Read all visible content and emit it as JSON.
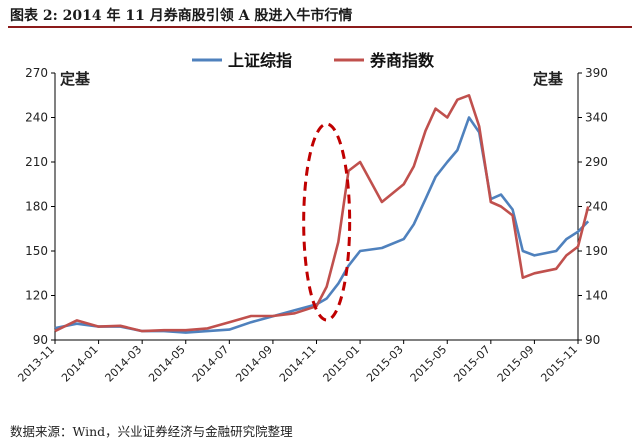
{
  "header": {
    "title": "图表 2: 2014 年 11 月券商股引领 A 股进入牛市行情"
  },
  "footer": {
    "source": "数据来源：Wind，兴业证券经济与金融研究院整理"
  },
  "chart_data": {
    "type": "line",
    "left_axis_label": "定基",
    "right_axis_label": "定基",
    "x_ticks": [
      "2013-11",
      "2014-01",
      "2014-03",
      "2014-05",
      "2014-07",
      "2014-09",
      "2014-11",
      "2015-01",
      "2015-03",
      "2015-05",
      "2015-07",
      "2015-09",
      "2015-11"
    ],
    "y_left": {
      "ticks": [
        90,
        120,
        150,
        180,
        210,
        240,
        270
      ],
      "ylim": [
        90,
        270
      ]
    },
    "y_right": {
      "ticks": [
        90,
        140,
        190,
        240,
        290,
        340,
        390
      ],
      "ylim": [
        90,
        390
      ]
    },
    "grid": false,
    "legend": "top-center",
    "annotation": "dashed red ellipse highlighting 2014-11 breakout",
    "series": [
      {
        "name": "上证综指",
        "axis": "left",
        "color": "#4f81bd",
        "points": [
          [
            "2013-11",
            98
          ],
          [
            "2013-12",
            101
          ],
          [
            "2014-01",
            99
          ],
          [
            "2014-02",
            99
          ],
          [
            "2014-03",
            96
          ],
          [
            "2014-04",
            96
          ],
          [
            "2014-05",
            95
          ],
          [
            "2014-06",
            96
          ],
          [
            "2014-07",
            97
          ],
          [
            "2014-08",
            102
          ],
          [
            "2014-09",
            106
          ],
          [
            "2014-10",
            110
          ],
          [
            "2014-11",
            114
          ],
          [
            "2014-11-15",
            118
          ],
          [
            "2014-12",
            128
          ],
          [
            "2014-12-15",
            140
          ],
          [
            "2015-01",
            150
          ],
          [
            "2015-02",
            152
          ],
          [
            "2015-03",
            158
          ],
          [
            "2015-03-15",
            168
          ],
          [
            "2015-04",
            185
          ],
          [
            "2015-04-15",
            200
          ],
          [
            "2015-05",
            210
          ],
          [
            "2015-05-15",
            218
          ],
          [
            "2015-06",
            240
          ],
          [
            "2015-06-15",
            230
          ],
          [
            "2015-07",
            185
          ],
          [
            "2015-07-15",
            188
          ],
          [
            "2015-08",
            178
          ],
          [
            "2015-08-15",
            150
          ],
          [
            "2015-09",
            147
          ],
          [
            "2015-10",
            150
          ],
          [
            "2015-10-15",
            158
          ],
          [
            "2015-11",
            163
          ],
          [
            "2015-11-15",
            170
          ]
        ]
      },
      {
        "name": "券商指数",
        "axis": "right",
        "color": "#c0504d",
        "points": [
          [
            "2013-11",
            100
          ],
          [
            "2013-12",
            112
          ],
          [
            "2014-01",
            105
          ],
          [
            "2014-02",
            106
          ],
          [
            "2014-03",
            100
          ],
          [
            "2014-04",
            101
          ],
          [
            "2014-05",
            101
          ],
          [
            "2014-06",
            103
          ],
          [
            "2014-07",
            110
          ],
          [
            "2014-08",
            117
          ],
          [
            "2014-09",
            117
          ],
          [
            "2014-10",
            120
          ],
          [
            "2014-11",
            128
          ],
          [
            "2014-11-15",
            150
          ],
          [
            "2014-12",
            200
          ],
          [
            "2014-12-15",
            280
          ],
          [
            "2015-01",
            290
          ],
          [
            "2015-02",
            245
          ],
          [
            "2015-03",
            265
          ],
          [
            "2015-03-15",
            285
          ],
          [
            "2015-04",
            325
          ],
          [
            "2015-04-15",
            350
          ],
          [
            "2015-05",
            340
          ],
          [
            "2015-05-15",
            360
          ],
          [
            "2015-06",
            365
          ],
          [
            "2015-06-15",
            330
          ],
          [
            "2015-07",
            245
          ],
          [
            "2015-07-15",
            240
          ],
          [
            "2015-08",
            230
          ],
          [
            "2015-08-15",
            160
          ],
          [
            "2015-09",
            165
          ],
          [
            "2015-10",
            170
          ],
          [
            "2015-10-15",
            185
          ],
          [
            "2015-11",
            195
          ],
          [
            "2015-11-15",
            240
          ]
        ]
      }
    ]
  }
}
